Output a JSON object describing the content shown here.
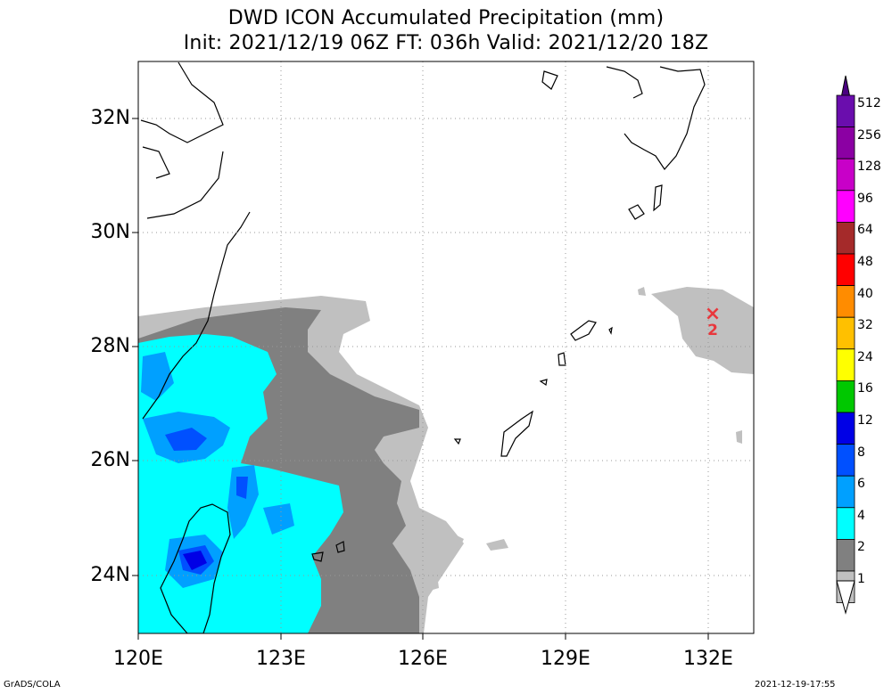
{
  "title": {
    "line1": "DWD ICON Accumulated Precipitation (mm)",
    "line2": "Init: 2021/12/19 06Z  FT: 036h  Valid: 2021/12/20 18Z"
  },
  "map": {
    "region": "East China Sea / Ryukyu Islands",
    "lat_labels": [
      "32N",
      "30N",
      "28N",
      "26N",
      "24N"
    ],
    "lon_labels": [
      "120E",
      "123E",
      "126E",
      "129E",
      "132E"
    ],
    "grid": "dotted",
    "marker": {
      "symbol": "×",
      "label": "2",
      "color": "#e8383d"
    }
  },
  "colorbar": {
    "labels": [
      "512",
      "256",
      "128",
      "96",
      "64",
      "48",
      "40",
      "32",
      "24",
      "16",
      "12",
      "8",
      "6",
      "4",
      "2",
      "1"
    ],
    "colors": [
      "#6a0dad",
      "#8b00a3",
      "#c800c8",
      "#ff00ff",
      "#a52a2a",
      "#ff0000",
      "#ff8c00",
      "#ffc000",
      "#ffff00",
      "#00c800",
      "#0000e6",
      "#0050ff",
      "#00a0ff",
      "#00ffff",
      "#808080",
      "#c0c0c0"
    ],
    "top_cap_color": "#4b0082",
    "bottom_cap_color": "#ffffff"
  },
  "footer": {
    "left": "GrADS/COLA",
    "right": "2021-12-19-17:55"
  }
}
